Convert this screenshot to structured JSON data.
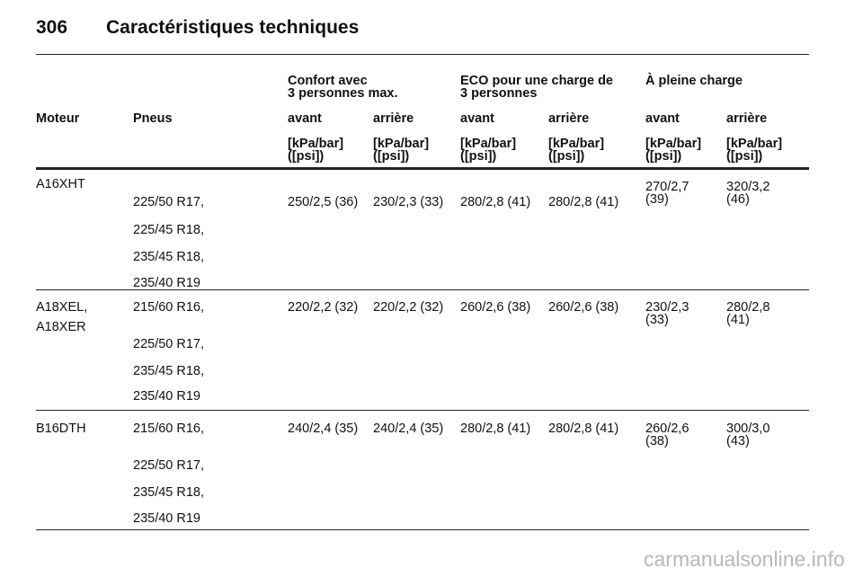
{
  "header": {
    "page_number": "306",
    "title": "Caractéristiques techniques"
  },
  "table": {
    "groups": [
      [
        "Confort avec",
        "3 personnes max."
      ],
      [
        "ECO pour une charge de",
        "3 personnes"
      ],
      [
        "À pleine charge"
      ]
    ],
    "columns": [
      "Moteur",
      "Pneus",
      "avant",
      "arrière",
      "avant",
      "arrière",
      "avant",
      "arrière"
    ],
    "units": [
      [
        "[kPa/bar]",
        "([psi])"
      ],
      [
        "[kPa/bar]",
        "([psi])"
      ],
      [
        "[kPa/bar]",
        "([psi])"
      ],
      [
        "[kPa/bar]",
        "([psi])"
      ],
      [
        "[kPa/bar]",
        "([psi])"
      ],
      [
        "[kPa/bar]",
        "([psi])"
      ]
    ],
    "rows": [
      {
        "engine": [
          "A16XHT"
        ],
        "tyres": [
          "225/50 R17,",
          "225/45 R18,",
          "235/45 R18,",
          "235/40 R19"
        ],
        "pressures": [
          [
            "250/2,5 (36)"
          ],
          [
            "230/2,3 (33)"
          ],
          [
            "280/2,8 (41)"
          ],
          [
            "280/2,8 (41)"
          ],
          [
            "270/2,7",
            "(39)"
          ],
          [
            "320/3,2",
            "(46)"
          ]
        ]
      },
      {
        "engine": [
          "A18XEL,",
          "A18XER"
        ],
        "tyres": [
          "215/60 R16,",
          "225/50 R17,",
          "235/45 R18,",
          "235/40 R19"
        ],
        "pressures": [
          [
            "220/2,2 (32)"
          ],
          [
            "220/2,2 (32)"
          ],
          [
            "260/2,6 (38)"
          ],
          [
            "260/2,6 (38)"
          ],
          [
            "230/2,3",
            "(33)"
          ],
          [
            "280/2,8",
            "(41)"
          ]
        ]
      },
      {
        "engine": [
          "B16DTH"
        ],
        "tyres": [
          "215/60 R16,",
          "225/50 R17,",
          "235/45 R18,",
          "235/40 R19"
        ],
        "pressures": [
          [
            "240/2,4 (35)"
          ],
          [
            "240/2,4 (35)"
          ],
          [
            "280/2,8 (41)"
          ],
          [
            "280/2,8 (41)"
          ],
          [
            "260/2,6",
            "(38)"
          ],
          [
            "300/3,0",
            "(43)"
          ]
        ]
      }
    ]
  },
  "watermark": "carmanualsonline.info"
}
